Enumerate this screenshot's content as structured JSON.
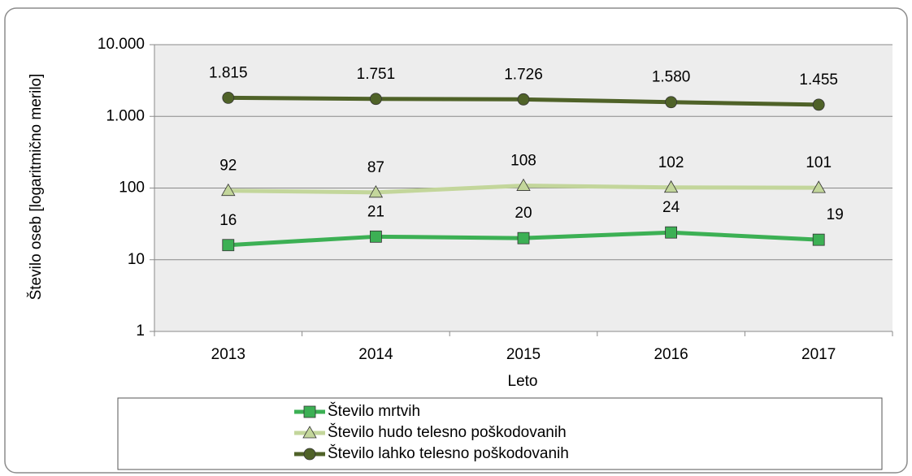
{
  "chart_data": {
    "type": "line",
    "y_label": "Število oseb [logaritmično merilo]",
    "x_label": "Leto",
    "categories": [
      "2013",
      "2014",
      "2015",
      "2016",
      "2017"
    ],
    "log_scale": true,
    "ylim": [
      1,
      10000
    ],
    "yticks": [
      1,
      10,
      100,
      {
        "value": 1000,
        "label": "1.000"
      },
      {
        "value": 10000,
        "label": "10.000"
      }
    ],
    "grid": true,
    "legend": "bottom",
    "series": [
      {
        "name": "Število mrtvih",
        "color": "#3cb054",
        "marker": "square",
        "values": [
          16,
          21,
          20,
          24,
          19
        ]
      },
      {
        "name": "Število hudo telesno poškodovanih",
        "color": "#c3d69b",
        "marker": "triangle",
        "values": [
          92,
          87,
          108,
          102,
          101
        ]
      },
      {
        "name": "Število lahko telesno poškodovanih",
        "color": "#4f6228",
        "marker": "circle",
        "values": [
          1815,
          1751,
          1726,
          1580,
          1455
        ],
        "value_labels": [
          "1.815",
          "1.751",
          "1.726",
          "1.580",
          "1.455"
        ]
      }
    ]
  }
}
